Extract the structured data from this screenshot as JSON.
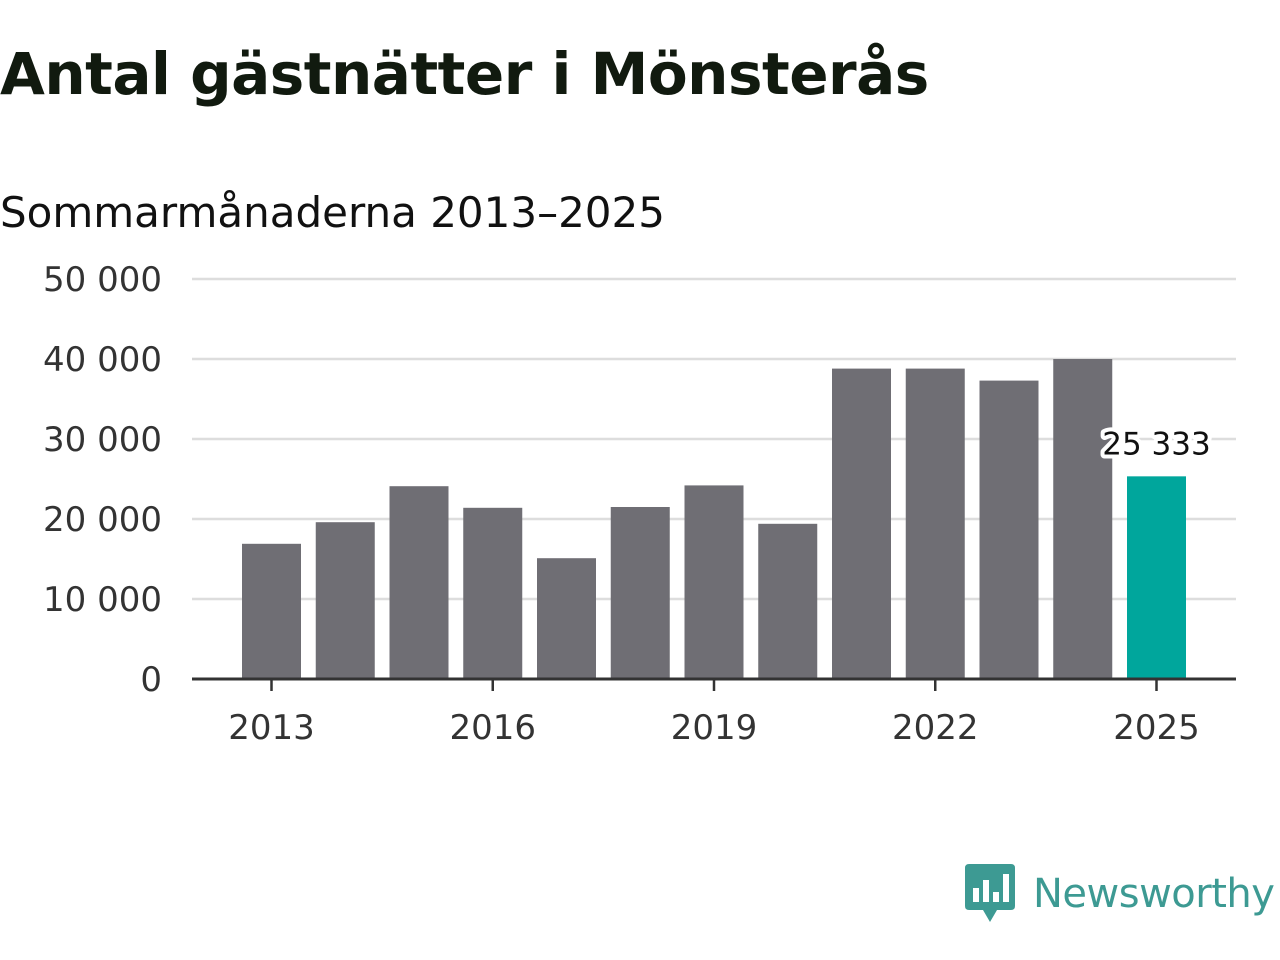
{
  "header": {
    "title": "Antal gästnätter i Mönsterås",
    "subtitle": "Sommarmånaderna 2013–2025"
  },
  "brand": {
    "name": "Newsworthy",
    "icon": "newsworthy-logo-icon",
    "color": "#3d9a93"
  },
  "chart_data": {
    "type": "bar",
    "title": "Antal gästnätter i Mönsterås",
    "subtitle": "Sommarmånaderna 2013–2025",
    "xlabel": "",
    "ylabel": "",
    "categories": [
      "2013",
      "2014",
      "2015",
      "2016",
      "2017",
      "2018",
      "2019",
      "2020",
      "2021",
      "2022",
      "2023",
      "2024",
      "2025"
    ],
    "values": [
      16900,
      19600,
      24100,
      21400,
      15100,
      21500,
      24200,
      19400,
      38800,
      38800,
      37300,
      40000,
      25333
    ],
    "ylim": [
      0,
      50000
    ],
    "yticks": [
      0,
      10000,
      20000,
      30000,
      40000,
      50000
    ],
    "ytick_labels": [
      "0",
      "10 000",
      "20 000",
      "30 000",
      "40 000",
      "50 000"
    ],
    "xticks": [
      "2013",
      "2016",
      "2019",
      "2022",
      "2025"
    ],
    "grid": true,
    "colors": {
      "bar": "#6f6e74",
      "highlight": "#00a69c",
      "grid": "#dddddd",
      "axis": "#333333"
    },
    "highlight_index": 12,
    "annotation": {
      "category": "2025",
      "text": "25 333"
    }
  }
}
